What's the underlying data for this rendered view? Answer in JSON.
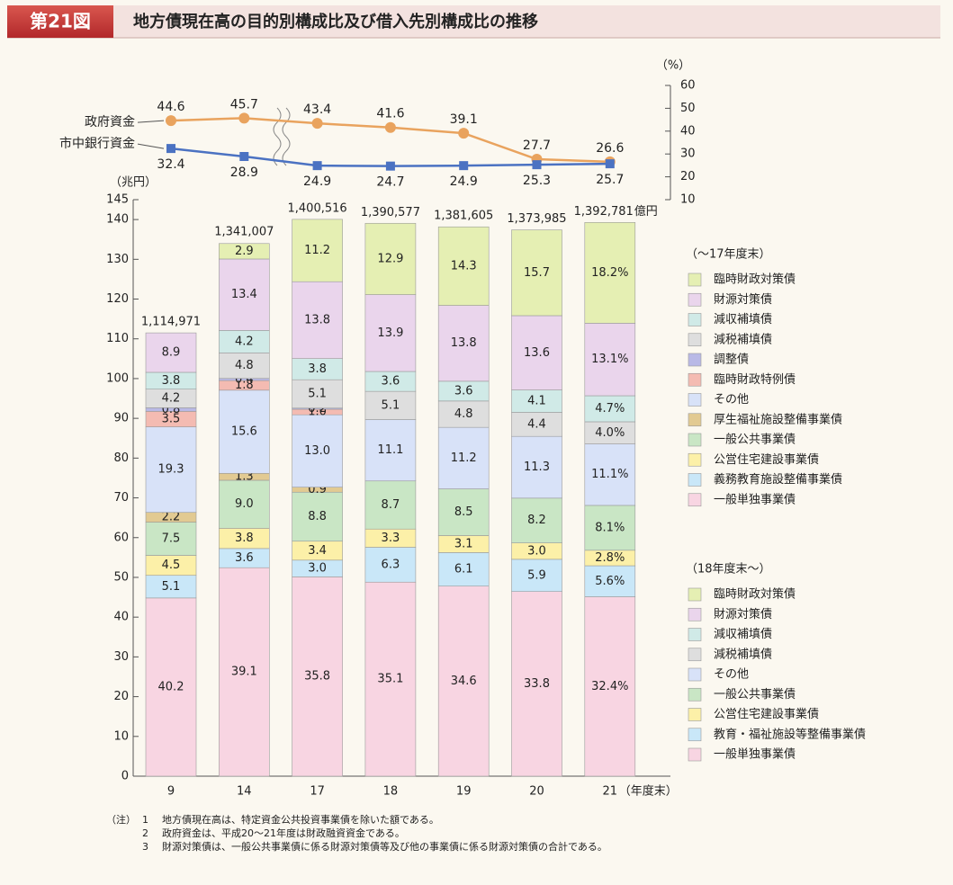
{
  "header": {
    "figure": "第21図",
    "title": "地方債現在高の目的別構成比及び借入先別構成比の推移"
  },
  "chart_data": [
    {
      "type": "stacked_bar",
      "y_label": "（兆円）",
      "x_label": "（年度末）",
      "ylim": [
        0,
        145
      ],
      "yticks": [
        0,
        10,
        20,
        30,
        40,
        50,
        60,
        70,
        80,
        90,
        100,
        110,
        120,
        130,
        140,
        145
      ],
      "total_unit": "億円",
      "periods": [
        {
          "legend_title": "（～17年度末）",
          "categories": [
            "9",
            "14",
            "17"
          ],
          "totals": {
            "values": [
              111.4971,
              134.1007,
              140.0516
            ],
            "value_labels": [
              "1,114,971",
              "1,341,007",
              "1,400,516"
            ]
          },
          "series": [
            {
              "name": "一般単独事業債",
              "color": "#f8d5e2",
              "values": [
                40.2,
                39.1,
                35.8
              ],
              "value_labels": [
                "40.2",
                "39.1",
                "35.8"
              ]
            },
            {
              "name": "義務教育施設整備事業債",
              "color": "#c9e7f8",
              "values": [
                5.1,
                3.6,
                3.0
              ],
              "value_labels": [
                "5.1",
                "3.6",
                "3.0"
              ]
            },
            {
              "name": "公営住宅建設事業債",
              "color": "#fcf0a8",
              "values": [
                4.5,
                3.8,
                3.4
              ],
              "value_labels": [
                "4.5",
                "3.8",
                "3.4"
              ]
            },
            {
              "name": "一般公共事業債",
              "color": "#c9e6c5",
              "values": [
                7.5,
                9.0,
                8.8
              ],
              "value_labels": [
                "7.5",
                "9.0",
                "8.8"
              ]
            },
            {
              "name": "厚生福祉施設整備事業債",
              "color": "#e2ca92",
              "values": [
                2.2,
                1.3,
                0.9
              ],
              "value_labels": [
                "2.2",
                "1.3",
                "0.9"
              ]
            },
            {
              "name": "その他",
              "color": "#d8e2f8",
              "values": [
                19.3,
                15.6,
                13.0
              ],
              "value_labels": [
                "19.3",
                "15.6",
                "13.0"
              ]
            },
            {
              "name": "臨時財政特例債",
              "color": "#f4bbb2",
              "values": [
                3.5,
                1.8,
                1.0
              ],
              "value_labels": [
                "3.5",
                "1.8",
                "1.0"
              ]
            },
            {
              "name": "調整債",
              "color": "#b9b9e6",
              "values": [
                0.8,
                0.4,
                0.2
              ],
              "value_labels": [
                "0.8",
                "0.4",
                "0.2"
              ]
            },
            {
              "name": "減税補填債",
              "color": "#dedede",
              "values": [
                4.2,
                4.8,
                5.1
              ],
              "value_labels": [
                "4.2",
                "4.8",
                "5.1"
              ]
            },
            {
              "name": "減収補填債",
              "color": "#d0eae7",
              "values": [
                3.8,
                4.2,
                3.8
              ],
              "value_labels": [
                "3.8",
                "4.2",
                "3.8"
              ]
            },
            {
              "name": "財源対策債",
              "color": "#ead5ec",
              "values": [
                8.9,
                13.4,
                13.8
              ],
              "value_labels": [
                "8.9",
                "13.4",
                "13.8"
              ]
            },
            {
              "name": "臨時財政対策債",
              "color": "#e5efb3",
              "values": [
                null,
                2.9,
                11.2
              ],
              "value_labels": [
                null,
                "2.9",
                "11.2"
              ]
            }
          ]
        },
        {
          "legend_title": "（18年度末～）",
          "categories": [
            "18",
            "19",
            "20",
            "21"
          ],
          "totals": {
            "values": [
              139.0577,
              138.1605,
              137.3985,
              139.2781
            ],
            "value_labels": [
              "1,390,577",
              "1,381,605",
              "1,373,985",
              "1,392,781"
            ]
          },
          "series": [
            {
              "name": "一般単独事業債",
              "color": "#f8d5e2",
              "values": [
                35.1,
                34.6,
                33.8,
                32.4
              ],
              "value_labels": [
                "35.1",
                "34.6",
                "33.8",
                "32.4%"
              ]
            },
            {
              "name": "教育・福祉施設等整備事業債",
              "color": "#c9e7f8",
              "values": [
                6.3,
                6.1,
                5.9,
                5.6
              ],
              "value_labels": [
                "6.3",
                "6.1",
                "5.9",
                "5.6%"
              ]
            },
            {
              "name": "公営住宅建設事業債",
              "color": "#fcf0a8",
              "values": [
                3.3,
                3.1,
                3.0,
                2.8
              ],
              "value_labels": [
                "3.3",
                "3.1",
                "3.0",
                "2.8%"
              ]
            },
            {
              "name": "一般公共事業債",
              "color": "#c9e6c5",
              "values": [
                8.7,
                8.5,
                8.2,
                8.1
              ],
              "value_labels": [
                "8.7",
                "8.5",
                "8.2",
                "8.1%"
              ]
            },
            {
              "name": "その他",
              "color": "#d8e2f8",
              "values": [
                11.1,
                11.2,
                11.3,
                11.1
              ],
              "value_labels": [
                "11.1",
                "11.2",
                "11.3",
                "11.1%"
              ]
            },
            {
              "name": "減税補填債",
              "color": "#dedede",
              "values": [
                5.1,
                4.8,
                4.4,
                4.0
              ],
              "value_labels": [
                "5.1",
                "4.8",
                "4.4",
                "4.0%"
              ]
            },
            {
              "name": "減収補填債",
              "color": "#d0eae7",
              "values": [
                3.6,
                3.6,
                4.1,
                4.7
              ],
              "value_labels": [
                "3.6",
                "3.6",
                "4.1",
                "4.7%"
              ]
            },
            {
              "name": "財源対策債",
              "color": "#ead5ec",
              "values": [
                13.9,
                13.8,
                13.6,
                13.1
              ],
              "value_labels": [
                "13.9",
                "13.8",
                "13.6",
                "13.1%"
              ]
            },
            {
              "name": "臨時財政対策債",
              "color": "#e5efb3",
              "values": [
                12.9,
                14.3,
                15.7,
                18.2
              ],
              "value_labels": [
                "12.9",
                "14.3",
                "15.7",
                "18.2%"
              ]
            }
          ]
        }
      ]
    },
    {
      "type": "line",
      "y_label": "（%）",
      "ylim": [
        10,
        60
      ],
      "yticks": [
        10,
        20,
        30,
        40,
        50,
        60
      ],
      "series": [
        {
          "name": "政府資金",
          "color": "#e9a35e",
          "marker": "circle",
          "values": [
            44.6,
            45.7,
            43.4,
            41.6,
            39.1,
            27.7,
            26.6
          ]
        },
        {
          "name": "市中銀行資金",
          "color": "#4b72c2",
          "marker": "square",
          "values": [
            32.4,
            28.9,
            24.9,
            24.7,
            24.9,
            25.3,
            25.7
          ]
        }
      ]
    }
  ],
  "notes": {
    "label": "（注）",
    "items": [
      {
        "number": "1",
        "text": "地方債現在高は、特定資金公共投資事業債を除いた額である。"
      },
      {
        "number": "2",
        "text": "政府資金は、平成20～21年度は財政融資資金である。"
      },
      {
        "number": "3",
        "text": "財源対策債は、一般公共事業債に係る財源対策債等及び他の事業債に係る財源対策債の合計である。"
      }
    ]
  }
}
